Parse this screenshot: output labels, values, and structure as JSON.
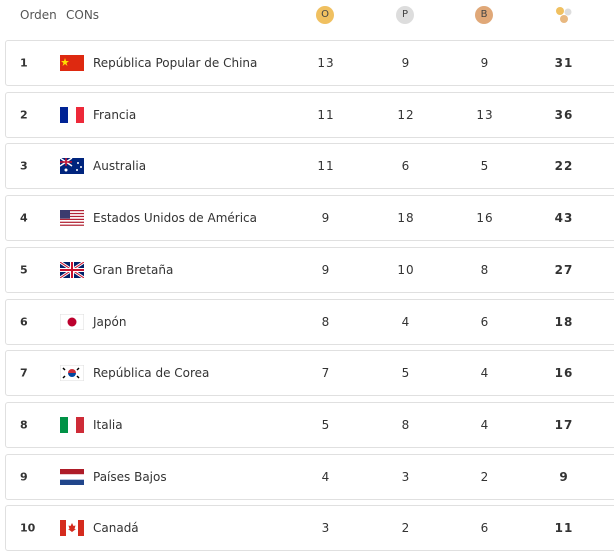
{
  "header": {
    "rank": "Orden",
    "noc": "CONs",
    "gold": "O",
    "silver": "P",
    "bronze": "B"
  },
  "rows": [
    {
      "rank": 1,
      "country": "República Popular de China",
      "gold": 13,
      "silver": 9,
      "bronze": 9,
      "total": 31
    },
    {
      "rank": 2,
      "country": "Francia",
      "gold": 11,
      "silver": 12,
      "bronze": 13,
      "total": 36
    },
    {
      "rank": 3,
      "country": "Australia",
      "gold": 11,
      "silver": 6,
      "bronze": 5,
      "total": 22
    },
    {
      "rank": 4,
      "country": "Estados Unidos de América",
      "gold": 9,
      "silver": 18,
      "bronze": 16,
      "total": 43
    },
    {
      "rank": 5,
      "country": "Gran Bretaña",
      "gold": 9,
      "silver": 10,
      "bronze": 8,
      "total": 27
    },
    {
      "rank": 6,
      "country": "Japón",
      "gold": 8,
      "silver": 4,
      "bronze": 6,
      "total": 18
    },
    {
      "rank": 7,
      "country": "República de Corea",
      "gold": 7,
      "silver": 5,
      "bronze": 4,
      "total": 16
    },
    {
      "rank": 8,
      "country": "Italia",
      "gold": 5,
      "silver": 8,
      "bronze": 4,
      "total": 17
    },
    {
      "rank": 9,
      "country": "Países Bajos",
      "gold": 4,
      "silver": 3,
      "bronze": 2,
      "total": 9
    },
    {
      "rank": 10,
      "country": "Canadá",
      "gold": 3,
      "silver": 2,
      "bronze": 6,
      "total": 11
    }
  ]
}
